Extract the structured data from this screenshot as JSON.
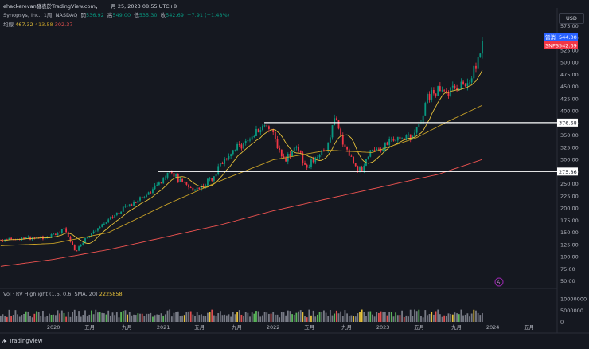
{
  "header": {
    "title": "ehackerevan發表於TradingView.com，十一月 25, 2023 08:55 UTC+8"
  },
  "symbol": {
    "name": "Synopsys, Inc.,",
    "interval": "1周",
    "exchange": "NASDAQ",
    "open_label": "開",
    "open": "536.92",
    "high_label": "高",
    "high": "549.00",
    "low_label": "低",
    "low": "535.30",
    "close_label": "收",
    "close": "542.69",
    "change": "+7.91 (+1.48%)"
  },
  "ma": {
    "label": "均線",
    "v1": "467.32",
    "v2": "413.58",
    "v3": "302.37"
  },
  "volume_legend": {
    "label": "Vol · RV Highlight (1.5, 0.6, SMA, 20)",
    "value": "2225858"
  },
  "currency": "USD",
  "price_tags": {
    "a_label": "當消",
    "a_value": "544.00",
    "b_label": "SNPS",
    "b_value": "542.69",
    "line1": "376.68",
    "line2": "275.86"
  },
  "footer": "TradingView",
  "colors": {
    "up": "#089981",
    "down": "#f23645",
    "ma1": "#e6c13a",
    "ma2": "#c9a227",
    "ma3": "#ef5350",
    "bg": "#151820"
  },
  "chart_data": {
    "type": "candlestick",
    "y_ticks": [
      "575.00",
      "550.00",
      "525.00",
      "500.00",
      "475.00",
      "450.00",
      "425.00",
      "400.00",
      "375.00",
      "350.00",
      "325.00",
      "300.00",
      "275.00",
      "250.00",
      "225.00",
      "200.00",
      "175.00",
      "150.00",
      "125.00",
      "100.00",
      "75.00",
      "50.00"
    ],
    "y_tick_values": [
      575,
      550,
      525,
      500,
      475,
      450,
      425,
      400,
      375,
      350,
      325,
      300,
      275,
      250,
      225,
      200,
      175,
      150,
      125,
      100,
      75,
      50
    ],
    "vol_ticks": [
      "10000000",
      "5000000",
      "0"
    ],
    "vol_tick_values": [
      10000000,
      5000000,
      0
    ],
    "x_ticks": [
      "2020",
      "五月",
      "九月",
      "2021",
      "五月",
      "九月",
      "2022",
      "五月",
      "九月",
      "2023",
      "五月",
      "九月",
      "2024",
      "五月"
    ],
    "x_tick_values": [
      2020.0,
      2020.33,
      2020.67,
      2021.0,
      2021.33,
      2021.67,
      2022.0,
      2022.33,
      2022.67,
      2023.0,
      2023.33,
      2023.67,
      2024.0,
      2024.33
    ],
    "horizontal_lines": [
      376.68,
      275.86
    ],
    "price_key": [
      [
        2019.5,
        134
      ],
      [
        2019.7,
        138
      ],
      [
        2019.9,
        140
      ],
      [
        2020.0,
        146
      ],
      [
        2020.1,
        158
      ],
      [
        2020.2,
        110
      ],
      [
        2020.3,
        140
      ],
      [
        2020.4,
        160
      ],
      [
        2020.5,
        175
      ],
      [
        2020.6,
        195
      ],
      [
        2020.75,
        215
      ],
      [
        2020.9,
        240
      ],
      [
        2021.0,
        255
      ],
      [
        2021.05,
        285
      ],
      [
        2021.15,
        255
      ],
      [
        2021.25,
        240
      ],
      [
        2021.35,
        245
      ],
      [
        2021.45,
        265
      ],
      [
        2021.55,
        300
      ],
      [
        2021.65,
        325
      ],
      [
        2021.75,
        335
      ],
      [
        2021.85,
        360
      ],
      [
        2021.95,
        375
      ],
      [
        2022.0,
        350
      ],
      [
        2022.1,
        300
      ],
      [
        2022.2,
        325
      ],
      [
        2022.3,
        290
      ],
      [
        2022.4,
        300
      ],
      [
        2022.5,
        330
      ],
      [
        2022.55,
        390
      ],
      [
        2022.62,
        345
      ],
      [
        2022.72,
        300
      ],
      [
        2022.8,
        275
      ],
      [
        2022.88,
        320
      ],
      [
        2022.95,
        315
      ],
      [
        2023.05,
        340
      ],
      [
        2023.15,
        350
      ],
      [
        2023.25,
        350
      ],
      [
        2023.33,
        370
      ],
      [
        2023.4,
        430
      ],
      [
        2023.5,
        445
      ],
      [
        2023.6,
        440
      ],
      [
        2023.7,
        455
      ],
      [
        2023.8,
        465
      ],
      [
        2023.88,
        520
      ],
      [
        2023.92,
        542
      ]
    ],
    "ma_slow_key": [
      [
        2019.5,
        80
      ],
      [
        2020.0,
        95
      ],
      [
        2020.5,
        115
      ],
      [
        2021.0,
        140
      ],
      [
        2021.5,
        165
      ],
      [
        2022.0,
        195
      ],
      [
        2022.5,
        220
      ],
      [
        2023.0,
        245
      ],
      [
        2023.5,
        270
      ],
      [
        2023.92,
        302
      ]
    ],
    "ma_mid_key": [
      [
        2019.5,
        123
      ],
      [
        2020.0,
        128
      ],
      [
        2020.5,
        150
      ],
      [
        2021.0,
        205
      ],
      [
        2021.5,
        255
      ],
      [
        2022.0,
        300
      ],
      [
        2022.5,
        320
      ],
      [
        2022.9,
        315
      ],
      [
        2023.3,
        345
      ],
      [
        2023.6,
        380
      ],
      [
        2023.92,
        414
      ]
    ]
  }
}
